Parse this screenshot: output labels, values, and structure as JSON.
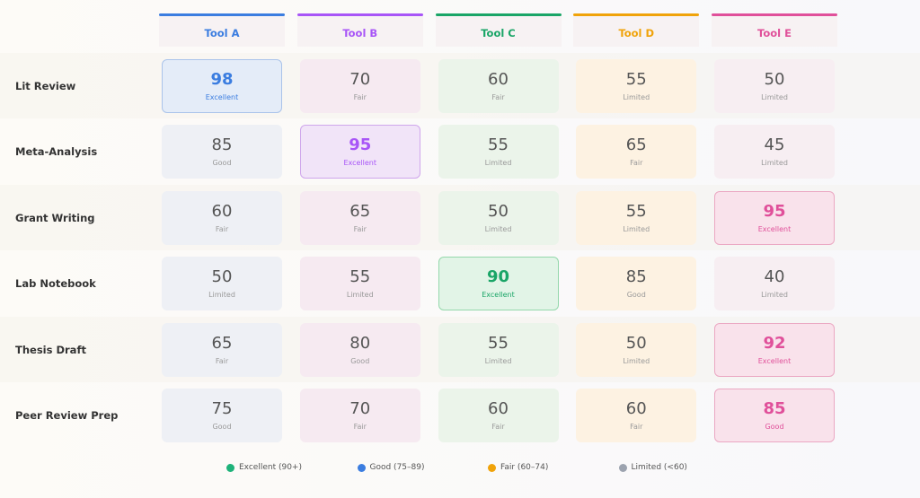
{
  "columns": [
    {
      "name": "Tool A",
      "color": "#3b7de0",
      "tint": "#eef0f5",
      "hi": "#e4ecf8",
      "border": "#aac3ea"
    },
    {
      "name": "Tool B",
      "color": "#a855f7",
      "tint": "#f6eaf1",
      "hi": "#f1e4f8",
      "border": "#cfa6ec"
    },
    {
      "name": "Tool C",
      "color": "#1aa567",
      "tint": "#ebf4ea",
      "hi": "#e2f4e7",
      "border": "#94d8ab"
    },
    {
      "name": "Tool D",
      "color": "#f0a30a",
      "tint": "#fdf2e2",
      "hi": "#fdf0dc",
      "border": "#f2c97a"
    },
    {
      "name": "Tool E",
      "color": "#e0509a",
      "tint": "#f7eef2",
      "hi": "#f9e2eb",
      "border": "#eba8c3"
    }
  ],
  "rows": [
    {
      "label": "Lit Review",
      "cells": [
        {
          "value": 98,
          "rating": "Excellent"
        },
        {
          "value": 70,
          "rating": "Fair"
        },
        {
          "value": 60,
          "rating": "Fair"
        },
        {
          "value": 55,
          "rating": "Limited"
        },
        {
          "value": 50,
          "rating": "Limited"
        }
      ]
    },
    {
      "label": "Meta-Analysis",
      "cells": [
        {
          "value": 85,
          "rating": "Good"
        },
        {
          "value": 95,
          "rating": "Excellent"
        },
        {
          "value": 55,
          "rating": "Limited"
        },
        {
          "value": 65,
          "rating": "Fair"
        },
        {
          "value": 45,
          "rating": "Limited"
        }
      ]
    },
    {
      "label": "Grant Writing",
      "cells": [
        {
          "value": 60,
          "rating": "Fair"
        },
        {
          "value": 65,
          "rating": "Fair"
        },
        {
          "value": 50,
          "rating": "Limited"
        },
        {
          "value": 55,
          "rating": "Limited"
        },
        {
          "value": 95,
          "rating": "Excellent"
        }
      ]
    },
    {
      "label": "Lab Notebook",
      "cells": [
        {
          "value": 50,
          "rating": "Limited"
        },
        {
          "value": 55,
          "rating": "Limited"
        },
        {
          "value": 90,
          "rating": "Excellent"
        },
        {
          "value": 85,
          "rating": "Good"
        },
        {
          "value": 40,
          "rating": "Limited"
        }
      ]
    },
    {
      "label": "Thesis Draft",
      "cells": [
        {
          "value": 65,
          "rating": "Fair"
        },
        {
          "value": 80,
          "rating": "Good"
        },
        {
          "value": 55,
          "rating": "Limited"
        },
        {
          "value": 50,
          "rating": "Limited"
        },
        {
          "value": 92,
          "rating": "Excellent"
        }
      ]
    },
    {
      "label": "Peer Review Prep",
      "cells": [
        {
          "value": 75,
          "rating": "Good"
        },
        {
          "value": 70,
          "rating": "Fair"
        },
        {
          "value": 60,
          "rating": "Fair"
        },
        {
          "value": 60,
          "rating": "Fair"
        },
        {
          "value": 85,
          "rating": "Good"
        }
      ]
    }
  ],
  "legend": [
    {
      "label": "Excellent (90+)",
      "color": "#1eb27a"
    },
    {
      "label": "Good (75–89)",
      "color": "#3b7de0"
    },
    {
      "label": "Fair (60–74)",
      "color": "#f0a30a"
    },
    {
      "label": "Limited (<60)",
      "color": "#9ca3af"
    }
  ]
}
